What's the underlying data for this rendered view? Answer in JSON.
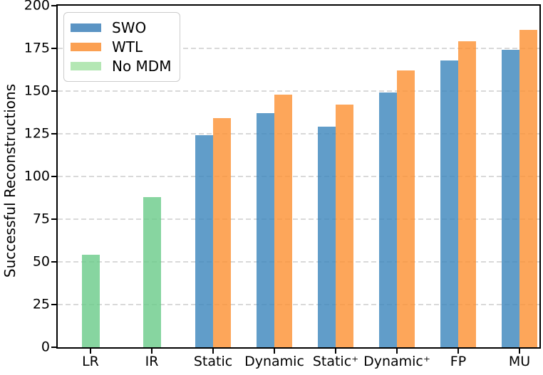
{
  "chart_data": {
    "type": "bar",
    "title": "",
    "xlabel": "",
    "ylabel": "Successful Reconstructions",
    "ylim": [
      0,
      200
    ],
    "yticks": [
      0,
      25,
      50,
      75,
      100,
      125,
      150,
      175,
      200
    ],
    "grid": "dashed-horizontal",
    "grid_color": "#d9d9d9",
    "spine_color": "#000000",
    "background_color": "#ffffff",
    "legend_position": "upper-left",
    "categories": [
      "LR",
      "IR",
      "Static",
      "Dynamic",
      "Static⁺",
      "Dynamic⁺",
      "FP",
      "MU"
    ],
    "series": [
      {
        "name": "SWO",
        "color": "#5b94c4",
        "bar_fill": "rgba(58,133,188,0.8)",
        "values": [
          null,
          null,
          124,
          137,
          129,
          149,
          168,
          174
        ]
      },
      {
        "name": "WTL",
        "color": "#fba052",
        "bar_fill": "rgba(253,144,49,0.8)",
        "values": [
          null,
          null,
          134,
          148,
          142,
          162,
          179,
          186
        ]
      },
      {
        "name": "No MDM",
        "color": "#b4e7b4",
        "bar_fill": "rgba(105,203,136,0.8)",
        "values": [
          54,
          88,
          null,
          null,
          null,
          null,
          null,
          null
        ]
      }
    ]
  }
}
